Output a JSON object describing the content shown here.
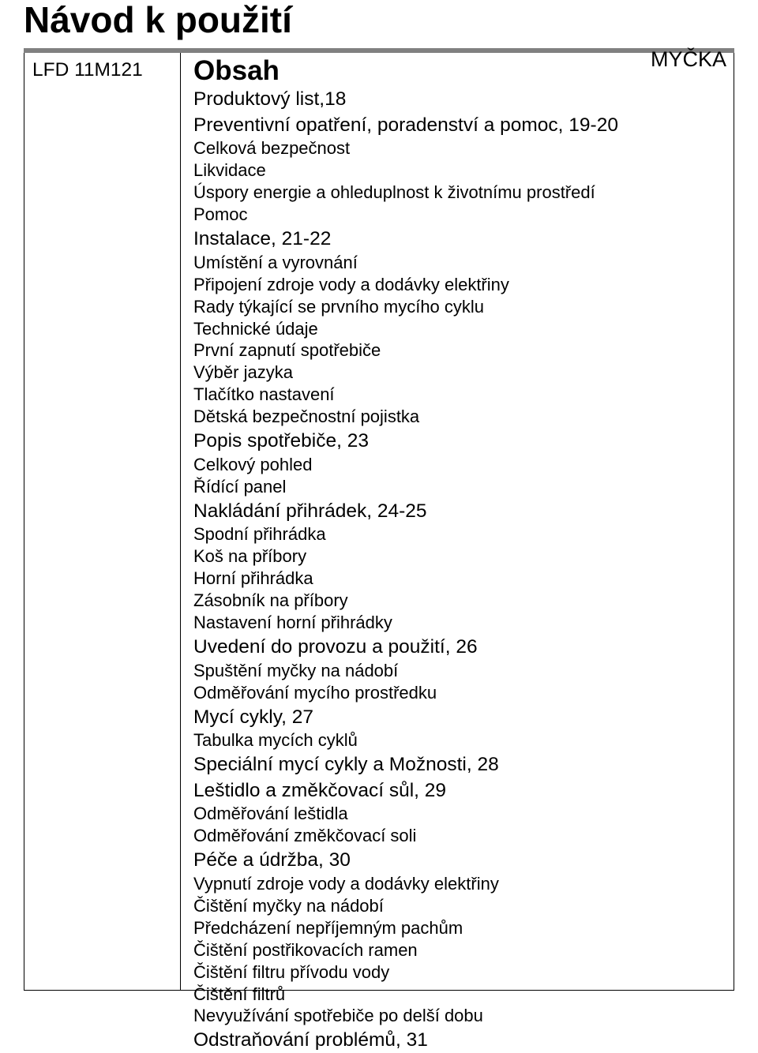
{
  "title": "Návod k použití",
  "subtitle": "MYČKA",
  "model": "LFD 11M121",
  "obsah": "Obsah",
  "sections": [
    {
      "head": "Produktový list,18",
      "lines": []
    },
    {
      "head": "Preventivní opatření, poradenství a pomoc, 19-20",
      "lines": [
        "Celková bezpečnost",
        "Likvidace",
        "Úspory energie a ohleduplnost k životnímu prostředí",
        "Pomoc"
      ]
    },
    {
      "head": "Instalace, 21-22",
      "lines": [
        "Umístění a vyrovnání",
        "Připojení zdroje vody a dodávky elektřiny",
        "Rady týkající se prvního mycího cyklu",
        "Technické údaje",
        "První zapnutí spotřebiče",
        "Výběr jazyka",
        "Tlačítko nastavení",
        "Dětská bezpečnostní pojistka"
      ]
    },
    {
      "head": "Popis spotřebiče, 23",
      "lines": [
        "Celkový pohled",
        "Řídící panel"
      ]
    },
    {
      "head": "Nakládání přihrádek, 24-25",
      "lines": [
        "Spodní přihrádka",
        "Koš na příbory",
        "Horní přihrádka",
        "Zásobník na příbory",
        "Nastavení horní přihrádky"
      ]
    },
    {
      "head": "Uvedení do provozu a použití, 26",
      "lines": [
        "Spuštění myčky na nádobí",
        "Odměřování mycího prostředku"
      ]
    },
    {
      "head": "Mycí cykly, 27",
      "lines": [
        "Tabulka mycích cyklů"
      ]
    },
    {
      "head": "Speciální mycí cykly a Možnosti, 28",
      "lines": []
    },
    {
      "head": "Leštidlo a změkčovací sůl, 29",
      "lines": [
        "Odměřování leštidla",
        "Odměřování změkčovací soli"
      ]
    },
    {
      "head": "Péče a údržba, 30",
      "lines": [
        "Vypnutí zdroje vody a dodávky elektřiny",
        "Čištění myčky na nádobí",
        "Předcházení nepříjemným pachům",
        "Čištění postřikovacích ramen",
        "Čištění filtru přívodu vody",
        "Čištění filtrů",
        "Nevyužívání spotřebiče po delší dobu"
      ]
    },
    {
      "head": "Odstraňování problémů, 31",
      "lines": []
    }
  ]
}
